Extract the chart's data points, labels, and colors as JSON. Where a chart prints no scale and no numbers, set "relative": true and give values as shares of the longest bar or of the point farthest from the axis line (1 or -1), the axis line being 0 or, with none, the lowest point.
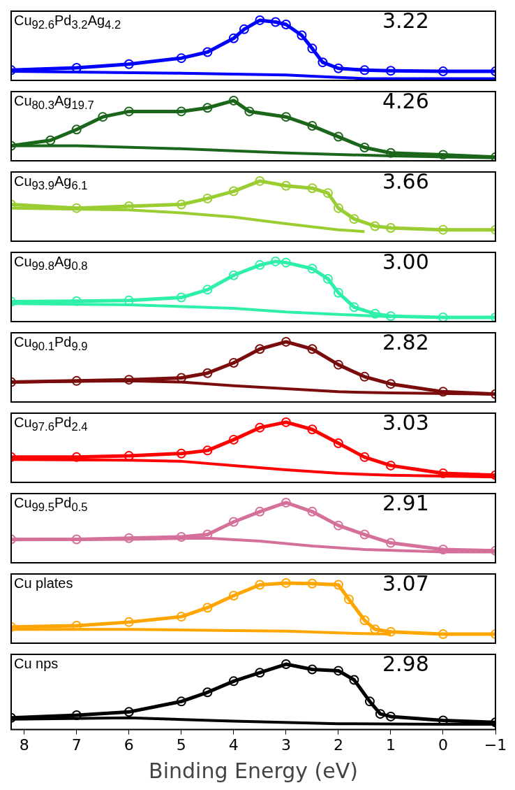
{
  "chart_data": [
    {
      "type": "line",
      "relative": true,
      "xlim": [
        8.25,
        -1
      ],
      "tick_labels": false,
      "annotations": [
        "Cu$_{92.6}$Pd$_{3.2}$Ag$_{4.2}$",
        "3.22"
      ],
      "series": [
        {
          "type": "line",
          "marker": "circle",
          "color": "#0000ff",
          "x": [
            8.25,
            7,
            6,
            5,
            4.5,
            4,
            3.8,
            3.5,
            3.2,
            3,
            2.7,
            2.5,
            2.3,
            2,
            1.5,
            1,
            0,
            -1
          ],
          "values": [
            0.17,
            0.21,
            0.27,
            0.37,
            0.47,
            0.7,
            0.85,
            1,
            0.97,
            0.93,
            0.75,
            0.53,
            0.3,
            0.2,
            0.17,
            0.16,
            0.15,
            0.15
          ]
        },
        {
          "type": "line",
          "marker": "none",
          "color": "#0000ff",
          "x": [
            8.25,
            5,
            3,
            2,
            1.5,
            -1
          ],
          "values": [
            0.15,
            0.12,
            0.09,
            0.05,
            0.03,
            0.03
          ]
        }
      ]
    },
    {
      "type": "line",
      "relative": true,
      "xlim": [
        8.25,
        -1
      ],
      "tick_labels": false,
      "annotations": [
        "Cu$_{80.3}$Ag$_{19.7}$",
        "4.26"
      ],
      "series": [
        {
          "type": "line",
          "marker": "circle",
          "color": "#1b661b",
          "x": [
            8.25,
            7.5,
            7,
            6.5,
            6,
            5,
            4.5,
            4,
            3.7,
            3,
            2.5,
            2,
            1.5,
            1,
            0,
            -1
          ],
          "values": [
            0.25,
            0.34,
            0.52,
            0.73,
            0.82,
            0.82,
            0.88,
            1,
            0.82,
            0.73,
            0.58,
            0.4,
            0.22,
            0.13,
            0.1,
            0.06
          ]
        },
        {
          "type": "line",
          "marker": "none",
          "color": "#1b661b",
          "x": [
            8.25,
            7,
            5,
            3,
            1,
            -1
          ],
          "values": [
            0.25,
            0.25,
            0.2,
            0.13,
            0.08,
            0.05
          ]
        }
      ]
    },
    {
      "type": "line",
      "relative": true,
      "xlim": [
        8.25,
        -1
      ],
      "tick_labels": false,
      "annotations": [
        "Cu$_{93.9}$Ag$_{6.1}$",
        "3.66"
      ],
      "series": [
        {
          "type": "line",
          "marker": "circle",
          "color": "#9acd32",
          "x": [
            8.25,
            7,
            6,
            5,
            4.5,
            4,
            3.5,
            3,
            2.5,
            2.2,
            2,
            1.7,
            1.3,
            1,
            0,
            -1
          ],
          "values": [
            0.61,
            0.55,
            0.58,
            0.61,
            0.71,
            0.83,
            1,
            0.92,
            0.88,
            0.8,
            0.55,
            0.37,
            0.25,
            0.22,
            0.19,
            0.19
          ]
        },
        {
          "type": "line",
          "marker": "none",
          "color": "#9acd32",
          "x": [
            8.25,
            6,
            5,
            4,
            3,
            2,
            1.5
          ],
          "values": [
            0.55,
            0.52,
            0.47,
            0.4,
            0.29,
            0.19,
            0.16
          ]
        }
      ]
    },
    {
      "type": "line",
      "relative": true,
      "xlim": [
        8.25,
        -1
      ],
      "tick_labels": false,
      "annotations": [
        "Cu$_{99.8}$Ag$_{0.8}$",
        "3.00"
      ],
      "series": [
        {
          "type": "line",
          "marker": "circle",
          "color": "#2ef0a8",
          "x": [
            8.25,
            7,
            6,
            5,
            4.5,
            4,
            3.5,
            3.2,
            3,
            2.5,
            2.2,
            2,
            1.7,
            1.3,
            1,
            0,
            -1
          ],
          "values": [
            0.33,
            0.34,
            0.35,
            0.4,
            0.53,
            0.77,
            0.94,
            1,
            0.98,
            0.88,
            0.71,
            0.48,
            0.24,
            0.13,
            0.09,
            0.07,
            0.07
          ]
        },
        {
          "type": "line",
          "marker": "none",
          "color": "#2ef0a8",
          "x": [
            8.25,
            6,
            4,
            3,
            2,
            1
          ],
          "values": [
            0.3,
            0.28,
            0.22,
            0.16,
            0.12,
            0.08
          ]
        }
      ]
    },
    {
      "type": "line",
      "relative": true,
      "xlim": [
        8.25,
        -1
      ],
      "tick_labels": false,
      "annotations": [
        "Cu$_{90.1}$Pd$_{9.9}$",
        "2.82"
      ],
      "series": [
        {
          "type": "line",
          "marker": "circle",
          "color": "#7a0c0c",
          "x": [
            8.25,
            7,
            6,
            5,
            4.5,
            4,
            3.5,
            3,
            2.5,
            2,
            1.5,
            1,
            0,
            -1
          ],
          "values": [
            0.33,
            0.35,
            0.37,
            0.4,
            0.48,
            0.65,
            0.88,
            1,
            0.88,
            0.62,
            0.42,
            0.3,
            0.17,
            0.13
          ]
        },
        {
          "type": "line",
          "marker": "none",
          "color": "#7a0c0c",
          "x": [
            8.25,
            6,
            5,
            4,
            3,
            2,
            1,
            -1
          ],
          "values": [
            0.33,
            0.35,
            0.33,
            0.27,
            0.22,
            0.17,
            0.15,
            0.13
          ]
        }
      ]
    },
    {
      "type": "line",
      "relative": true,
      "xlim": [
        8.25,
        -1
      ],
      "tick_labels": false,
      "annotations": [
        "Cu$_{97.6}$Pd$_{2.4}$",
        "3.03"
      ],
      "series": [
        {
          "type": "line",
          "marker": "circle",
          "color": "#ff0000",
          "x": [
            8.25,
            7,
            6,
            5,
            4.5,
            4,
            3.5,
            3,
            2.5,
            2,
            1.5,
            1,
            0,
            -1
          ],
          "values": [
            0.42,
            0.42,
            0.44,
            0.48,
            0.53,
            0.71,
            0.91,
            1,
            0.88,
            0.65,
            0.42,
            0.28,
            0.15,
            0.12
          ]
        },
        {
          "type": "line",
          "marker": "none",
          "color": "#ff0000",
          "x": [
            8.25,
            6,
            5,
            4,
            3,
            2,
            1,
            -1
          ],
          "values": [
            0.38,
            0.37,
            0.35,
            0.28,
            0.21,
            0.15,
            0.12,
            0.09
          ]
        }
      ]
    },
    {
      "type": "line",
      "relative": true,
      "xlim": [
        8.25,
        -1
      ],
      "tick_labels": false,
      "annotations": [
        "Cu$_{99.5}$Pd$_{0.5}$",
        "2.91"
      ],
      "series": [
        {
          "type": "line",
          "marker": "circle",
          "color": "#d4709a",
          "x": [
            8.25,
            7,
            6,
            5,
            4.5,
            4,
            3.5,
            3,
            2.5,
            2,
            1.5,
            1,
            0,
            -1
          ],
          "values": [
            0.39,
            0.39,
            0.41,
            0.43,
            0.47,
            0.68,
            0.85,
            1,
            0.85,
            0.62,
            0.47,
            0.33,
            0.22,
            0.2
          ]
        },
        {
          "type": "line",
          "marker": "none",
          "color": "#d4709a",
          "x": [
            8.25,
            6,
            4.5,
            3.5,
            2.5,
            1.5,
            0,
            -1
          ],
          "values": [
            0.38,
            0.39,
            0.41,
            0.36,
            0.28,
            0.22,
            0.18,
            0.18
          ]
        }
      ]
    },
    {
      "type": "line",
      "relative": true,
      "xlim": [
        8.25,
        -1
      ],
      "tick_labels": false,
      "annotations": [
        "Cu plates",
        "3.07"
      ],
      "series": [
        {
          "type": "line",
          "marker": "circle",
          "color": "#ffa500",
          "x": [
            8.25,
            7,
            6,
            5,
            4.5,
            4,
            3.5,
            3,
            2.5,
            2,
            1.8,
            1.5,
            1.3,
            1,
            0,
            -1
          ],
          "values": [
            0.27,
            0.29,
            0.35,
            0.44,
            0.59,
            0.79,
            0.97,
            1,
            0.99,
            0.97,
            0.73,
            0.38,
            0.23,
            0.19,
            0.15,
            0.15
          ]
        },
        {
          "type": "line",
          "marker": "none",
          "color": "#ffa500",
          "x": [
            8.25,
            6,
            4,
            3,
            2,
            1
          ],
          "values": [
            0.23,
            0.23,
            0.21,
            0.2,
            0.17,
            0.15
          ]
        }
      ]
    },
    {
      "type": "line",
      "relative": true,
      "xlim": [
        8.25,
        -1
      ],
      "xticks": [
        8,
        7,
        6,
        5,
        4,
        3,
        2,
        1,
        0,
        {
          "value": -1,
          "label": "−1"
        }
      ],
      "tick_labels": "x",
      "xlabel": "Binding Energy (eV)",
      "annotations": [
        "Cu nps",
        "2.98"
      ],
      "series": [
        {
          "type": "line",
          "marker": "circle",
          "color": "#000000",
          "x": [
            8.25,
            7,
            6,
            5,
            4.5,
            4,
            3.5,
            3,
            2.5,
            2,
            1.7,
            1.4,
            1.2,
            1,
            0,
            -1
          ],
          "values": [
            0.18,
            0.22,
            0.27,
            0.43,
            0.57,
            0.74,
            0.87,
            1,
            0.92,
            0.9,
            0.76,
            0.43,
            0.24,
            0.2,
            0.14,
            0.11
          ]
        },
        {
          "type": "line",
          "marker": "none",
          "color": "#000000",
          "x": [
            8.25,
            6,
            4,
            2,
            0,
            -1
          ],
          "values": [
            0.16,
            0.18,
            0.13,
            0.09,
            0.08,
            0.08
          ]
        }
      ]
    }
  ]
}
